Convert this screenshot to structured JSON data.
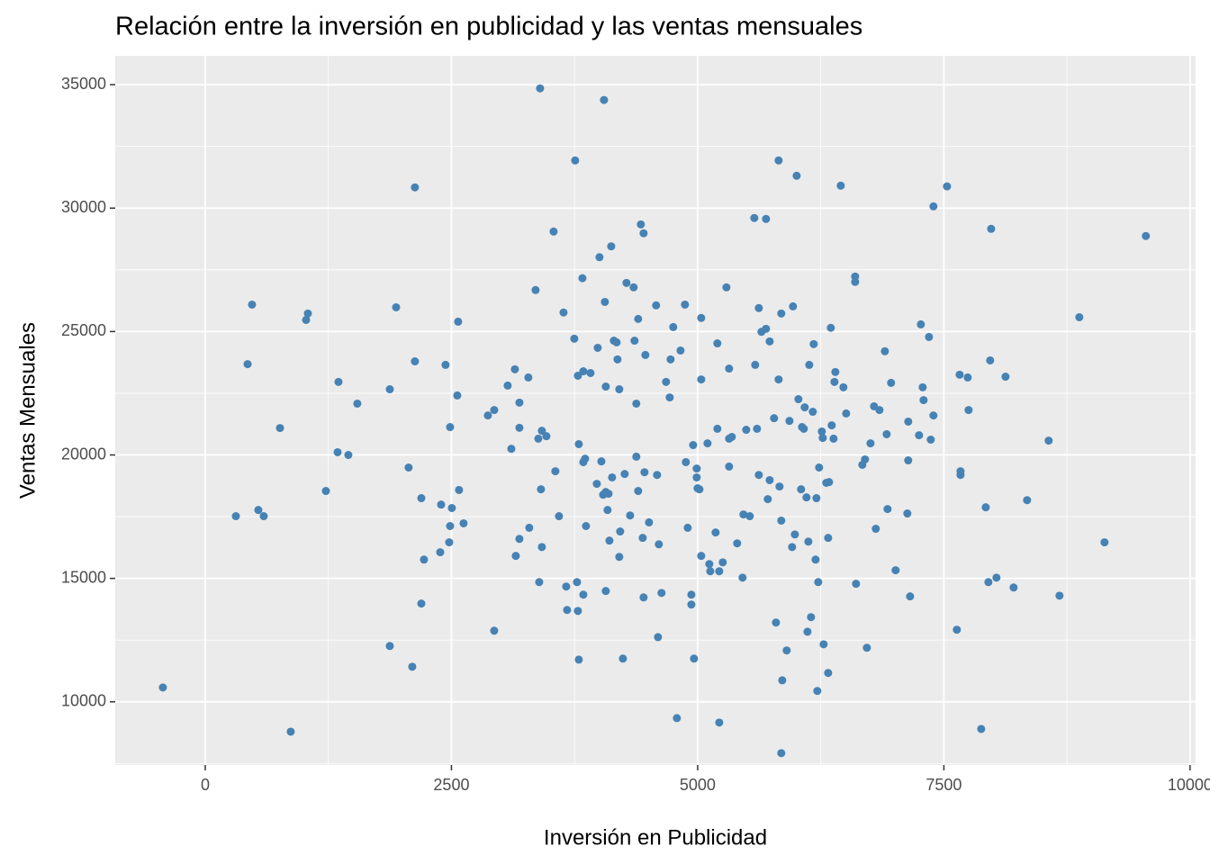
{
  "chart_data": {
    "type": "scatter",
    "title": "Relación entre la inversión en publicidad y las ventas mensuales",
    "x_label": "Inversión en Publicidad",
    "y_label": "Ventas Mensuales",
    "color": "#4682b4",
    "grid": true,
    "minor_grid": true,
    "xlim": [
      -914,
      10056
    ],
    "ylim": [
      7440,
      36170
    ],
    "xticks": [
      0,
      2500,
      5000,
      7500,
      10000
    ],
    "yticks": [
      10000,
      15000,
      20000,
      25000,
      30000,
      35000
    ],
    "x": [
      -430,
      311,
      539,
      594,
      430,
      475,
      759,
      868,
      1024,
      1042,
      1225,
      1353,
      1344,
      1453,
      1544,
      1874,
      1874,
      1938,
      2065,
      2102,
      2129,
      2129,
      2194,
      2221,
      2194,
      2395,
      2386,
      2440,
      2486,
      2504,
      2486,
      2477,
      2568,
      2559,
      2577,
      2623,
      2934,
      2870,
      2934,
      3071,
      3108,
      3144,
      3190,
      3190,
      3153,
      3190,
      3281,
      3290,
      3354,
      3400,
      3382,
      3409,
      3418,
      3464,
      3418,
      3391,
      3537,
      3555,
      3592,
      3638,
      3665,
      3674,
      3747,
      3756,
      3784,
      3793,
      3775,
      3784,
      3793,
      3830,
      3839,
      3857,
      3839,
      3866,
      3839,
      3912,
      3985,
      3976,
      4003,
      4022,
      4040,
      4049,
      4058,
      4067,
      4067,
      4095,
      4085,
      4104,
      4067,
      4122,
      4131,
      4149,
      4177,
      4186,
      4204,
      4213,
      4204,
      4241,
      4259,
      4277,
      4314,
      4350,
      4359,
      4377,
      4377,
      4396,
      4396,
      4423,
      4451,
      4442,
      4460,
      4451,
      4469,
      4506,
      4578,
      4588,
      4606,
      4633,
      4597,
      4679,
      4716,
      4725,
      4752,
      4789,
      4826,
      4871,
      4880,
      4899,
      4936,
      4936,
      4963,
      4954,
      4990,
      4990,
      4999,
      5018,
      5036,
      5036,
      5036,
      5100,
      5118,
      5128,
      5182,
      5200,
      5200,
      5219,
      5219,
      5255,
      5292,
      5319,
      5319,
      5319,
      5347,
      5401,
      5465,
      5456,
      5493,
      5529,
      5575,
      5584,
      5621,
      5603,
      5621,
      5648,
      5694,
      5694,
      5731,
      5712,
      5731,
      5776,
      5795,
      5822,
      5822,
      5831,
      5849,
      5849,
      5859,
      5849,
      5904,
      5932,
      5959,
      5968,
      5987,
      6005,
      6023,
      6050,
      6060,
      6078,
      6087,
      6105,
      6115,
      6133,
      6124,
      6151,
      6169,
      6178,
      6197,
      6206,
      6215,
      6224,
      6233,
      6261,
      6270,
      6279,
      6306,
      6334,
      6325,
      6325,
      6352,
      6361,
      6380,
      6389,
      6398,
      6453,
      6480,
      6508,
      6599,
      6599,
      6608,
      6672,
      6699,
      6718,
      6755,
      6791,
      6809,
      6846,
      6901,
      6928,
      6919,
      6964,
      7010,
      7129,
      7138,
      7138,
      7157,
      7248,
      7266,
      7285,
      7294,
      7349,
      7367,
      7394,
      7394,
      7532,
      7632,
      7660,
      7669,
      7669,
      7742,
      7751,
      7879,
      7925,
      7952,
      7970,
      7980,
      8034,
      8126,
      8208,
      8345,
      8564,
      8674,
      8875,
      9131,
      9551
    ],
    "y": [
      10580,
      17520,
      17770,
      17520,
      23680,
      26090,
      21090,
      8790,
      25470,
      25730,
      18540,
      22960,
      20110,
      20000,
      22080,
      22660,
      12260,
      25980,
      19490,
      11420,
      30840,
      23790,
      18250,
      15760,
      13980,
      17990,
      16060,
      23650,
      21130,
      17850,
      17120,
      16460,
      25400,
      22410,
      18580,
      17230,
      12880,
      21600,
      21820,
      22810,
      20250,
      23470,
      21100,
      22120,
      15910,
      16600,
      23140,
      17050,
      26680,
      34850,
      20660,
      18610,
      20980,
      20760,
      16270,
      14850,
      29050,
      19340,
      17520,
      25770,
      14670,
      13720,
      24710,
      31930,
      23210,
      20440,
      14850,
      13680,
      11710,
      27160,
      23390,
      19850,
      19710,
      17120,
      14340,
      23320,
      24340,
      18830,
      28010,
      19740,
      18390,
      34380,
      26200,
      22770,
      18500,
      18430,
      17770,
      16530,
      14490,
      28450,
      19090,
      24630,
      24560,
      23870,
      22660,
      16900,
      15870,
      11750,
      19230,
      26970,
      17550,
      26790,
      24630,
      22080,
      19930,
      18540,
      25510,
      29340,
      28980,
      16640,
      19300,
      14230,
      24050,
      17270,
      26060,
      19190,
      16380,
      14410,
      12620,
      22960,
      22330,
      23870,
      25180,
      9340,
      24230,
      26090,
      19710,
      17050,
      14340,
      13940,
      11750,
      20400,
      19450,
      19090,
      18650,
      18610,
      25550,
      23060,
      15910,
      20470,
      15580,
      15290,
      16860,
      24520,
      21060,
      15290,
      9160,
      15650,
      26790,
      23500,
      20660,
      19530,
      20730,
      16420,
      17590,
      15030,
      21020,
      17520,
      29600,
      23650,
      25950,
      21060,
      19190,
      24990,
      29560,
      25110,
      24600,
      18210,
      18980,
      21490,
      13210,
      31930,
      23060,
      18720,
      17340,
      7920,
      10870,
      25730,
      12080,
      21380,
      16270,
      26020,
      16780,
      31310,
      22260,
      18610,
      21130,
      21060,
      21930,
      18280,
      12840,
      23650,
      16490,
      13430,
      21750,
      24490,
      15760,
      18250,
      10440,
      14850,
      19490,
      20950,
      20690,
      12330,
      18870,
      18900,
      16640,
      11170,
      25150,
      21200,
      20660,
      22960,
      23360,
      30910,
      22740,
      21680,
      27230,
      27010,
      14780,
      19600,
      19820,
      12190,
      20470,
      21970,
      17010,
      21820,
      24200,
      17810,
      20840,
      22920,
      15330,
      17630,
      19780,
      21350,
      14270,
      20800,
      25290,
      22740,
      22220,
      24780,
      20620,
      21600,
      30070,
      30880,
      12920,
      23250,
      19340,
      19190,
      23140,
      21820,
      8900,
      17880,
      14850,
      23830,
      29160,
      15030,
      23170,
      14630,
      18170,
      20580,
      14300,
      25580,
      16460,
      28870
    ]
  }
}
